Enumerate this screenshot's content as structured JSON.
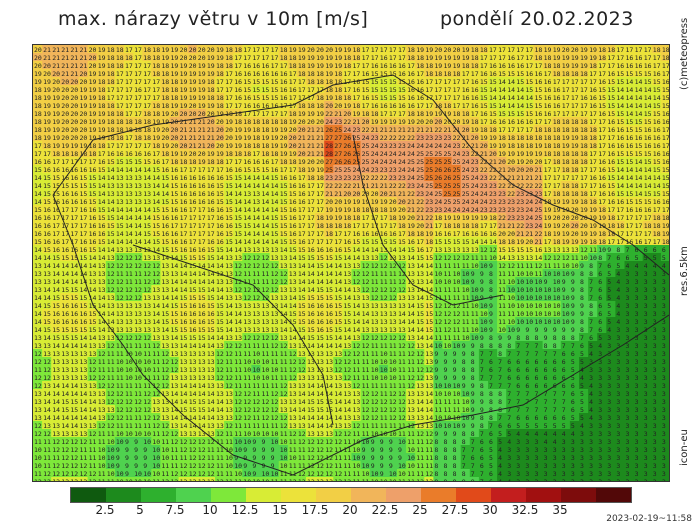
{
  "title": {
    "left": "max. nárazy větru v 10m [m/s]",
    "right": "pondělí 20.02.2023"
  },
  "side_labels": {
    "copyright": "(c)meteopress",
    "resolution": "res.6.5km",
    "model": "icon-eu"
  },
  "timestamp": "2023-02-19~11:58",
  "legend": {
    "colors": [
      "#0f5a0f",
      "#1d8a1d",
      "#2eb02e",
      "#4fd24f",
      "#7ee83a",
      "#d8ec35",
      "#ece23a",
      "#f2cf45",
      "#f1b55a",
      "#eea06a",
      "#ea7c2a",
      "#e14a1a",
      "#c31e1e",
      "#a11010",
      "#7d0c0c",
      "#520808"
    ],
    "ticks": [
      "2.5",
      "5",
      "7.5",
      "10",
      "12.5",
      "15",
      "17.5",
      "20",
      "22.5",
      "25",
      "27.5",
      "30",
      "32.5",
      "35"
    ]
  }
}
